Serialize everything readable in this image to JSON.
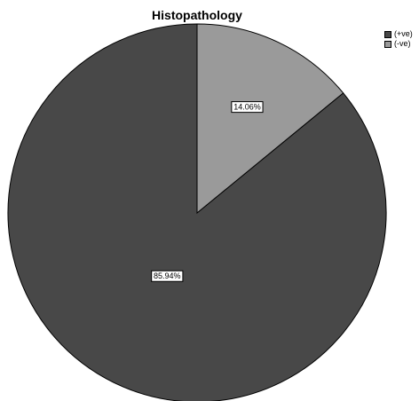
{
  "chart_data": {
    "type": "pie",
    "title": "Histopathology",
    "slices": [
      {
        "name": "(+ve)",
        "value": 85.94,
        "label": "85.94%",
        "color": "#484848"
      },
      {
        "name": "(-ve)",
        "value": 14.06,
        "label": "14.06%",
        "color": "#9a9a9a"
      }
    ],
    "start_angle": "12 o'clock",
    "direction": "counter-clockwise",
    "legend_position": "top-right"
  }
}
